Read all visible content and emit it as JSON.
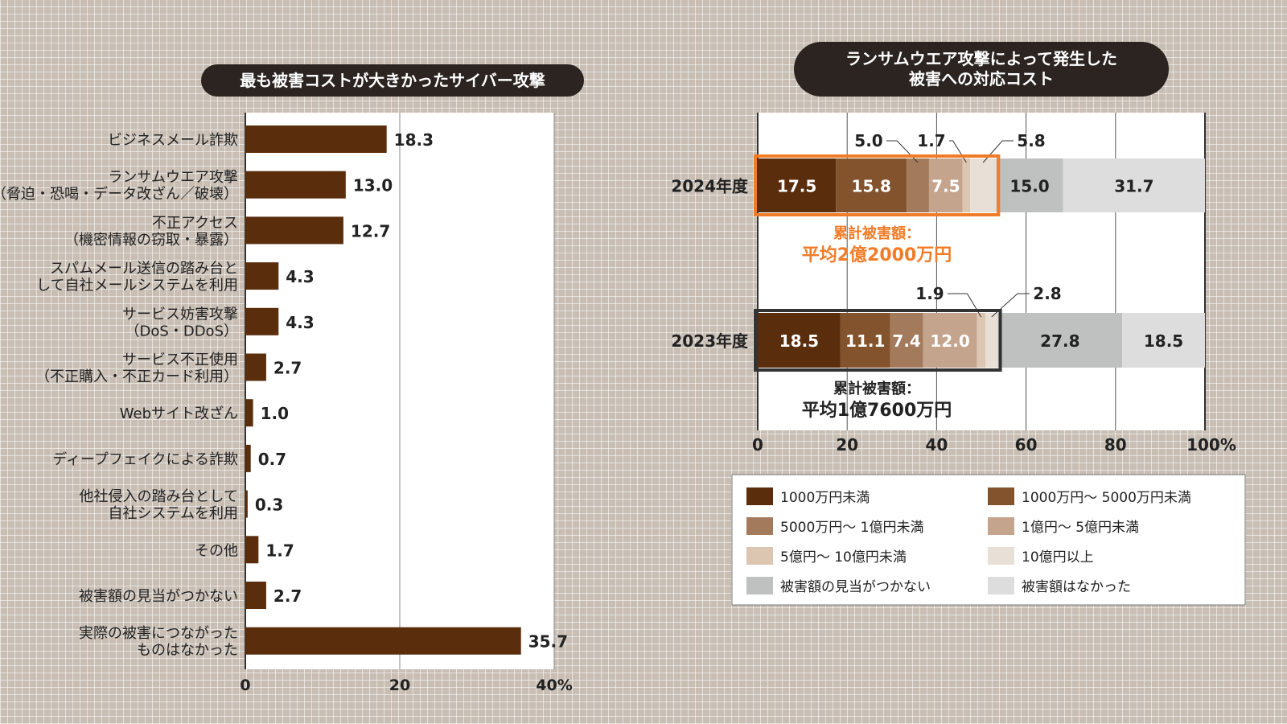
{
  "chart_data": [
    {
      "type": "bar",
      "orientation": "horizontal",
      "title": "最も被害コストが大きかったサイバー攻撃",
      "categories": [
        "ビジネスメール詐欺",
        "ランサムウエア攻撃\n（脅迫・恐喝・データ改ざん／破壊）",
        "不正アクセス\n（機密情報の窃取・暴露）",
        "スパムメール送信の踏み台と\nして自社メールシステムを利用",
        "サービス妨害攻撃\n（DoS・DDoS）",
        "サービス不正使用\n（不正購入・不正カード利用）",
        "Webサイト改ざん",
        "ディープフェイクによる詐欺",
        "他社侵入の踏み台として\n自社システムを利用",
        "その他",
        "被害額の見当がつかない",
        "実際の被害につながった\nものはなかった"
      ],
      "values": [
        18.3,
        13.0,
        12.7,
        4.3,
        4.3,
        2.7,
        1.0,
        0.7,
        0.3,
        1.7,
        2.7,
        35.7
      ],
      "xlim": [
        0,
        40
      ],
      "xticks": [
        "0",
        "20",
        "40%"
      ],
      "grid": true,
      "color": "#5a2d0c"
    },
    {
      "type": "bar",
      "orientation": "horizontal",
      "stacked": true,
      "title": "ランサムウエア攻撃によって発生した\n被害への対応コスト",
      "categories": [
        "2024年度",
        "2023年度"
      ],
      "series": [
        {
          "name": "1000万円未満",
          "values": [
            17.5,
            18.5
          ],
          "color": "#5a2d0c"
        },
        {
          "name": "1000万円～ 5000万円未満",
          "values": [
            15.8,
            11.1
          ],
          "color": "#83532e"
        },
        {
          "name": "5000万円～ 1億円未満",
          "values": [
            5.0,
            7.4
          ],
          "color": "#a47a5c"
        },
        {
          "name": "1億円～ 5億円未満",
          "values": [
            7.5,
            12.0
          ],
          "color": "#c4a48c"
        },
        {
          "name": "5億円～ 10億円未満",
          "values": [
            1.7,
            1.9
          ],
          "color": "#dcc6b2"
        },
        {
          "name": "10億円以上",
          "values": [
            5.8,
            2.8
          ],
          "color": "#e8e0d6"
        },
        {
          "name": "被害額の見当がつかない",
          "values": [
            15.0,
            27.8
          ],
          "color": "#bfc1c0"
        },
        {
          "name": "被害額はなかった",
          "values": [
            31.7,
            18.5
          ],
          "color": "#dcdddc"
        }
      ],
      "annotations": [
        {
          "label": "累計被害額：",
          "value": "平均2億2000万円",
          "color": "#f07c28"
        },
        {
          "label": "累計被害額：",
          "value": "平均1億7600万円",
          "color": "#222222"
        }
      ],
      "xlim": [
        0,
        100
      ],
      "xticks": [
        "0",
        "20",
        "40",
        "60",
        "80",
        "100%"
      ],
      "grid": true,
      "legend": "bottom"
    }
  ]
}
